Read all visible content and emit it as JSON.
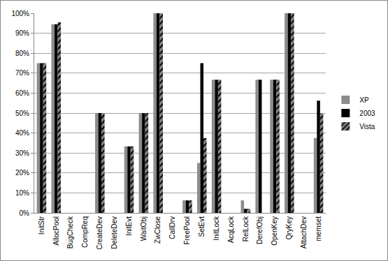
{
  "chart_data": {
    "type": "bar",
    "categories": [
      "InitStr",
      "AllocPool",
      "BugCheck",
      "CompReq",
      "CreateDev",
      "DeleteDev",
      "InitEvt",
      "WaitObj",
      "ZwClose",
      "CallDrv",
      "FreePool",
      "SetEvt",
      "InitLock",
      "AcqLock",
      "RelLock",
      "DerefObj",
      "OpenKey",
      "QryKey",
      "AttachDev",
      "memset"
    ],
    "series": [
      {
        "name": "XP",
        "color": "#8c8c8c",
        "values": [
          75,
          94.5,
          0,
          0,
          50,
          0,
          33.3,
          50,
          100,
          0,
          6.25,
          25,
          66.7,
          0,
          6.25,
          66.7,
          66.7,
          100,
          0,
          37.5
        ]
      },
      {
        "name": "2003",
        "color": "#000000",
        "values": [
          75,
          94.5,
          0,
          0,
          50,
          0,
          33.3,
          50,
          100,
          0,
          6.25,
          75,
          66.7,
          0,
          2,
          66.7,
          66.7,
          100,
          0,
          56.25
        ]
      },
      {
        "name": "Vista",
        "color": "#7f7f7f",
        "marker": "hatched",
        "values": [
          75,
          95.5,
          0,
          0,
          50,
          0,
          33.3,
          50,
          100,
          0,
          6.25,
          37.5,
          66.7,
          0,
          2,
          0,
          66.7,
          100,
          0,
          50
        ]
      }
    ],
    "ylim": [
      0,
      100
    ],
    "yticks": [
      {
        "value": 0,
        "label": "0%"
      },
      {
        "value": 10,
        "label": "10%"
      },
      {
        "value": 20,
        "label": "20%"
      },
      {
        "value": 30,
        "label": "30%"
      },
      {
        "value": 40,
        "label": "40%"
      },
      {
        "value": 50,
        "label": "50%"
      },
      {
        "value": 60,
        "label": "60%"
      },
      {
        "value": 70,
        "label": "70%"
      },
      {
        "value": 80,
        "label": "80%"
      },
      {
        "value": 90,
        "label": "90%"
      },
      {
        "value": 100,
        "label": "100%"
      }
    ],
    "grid": true,
    "legend": "right"
  }
}
